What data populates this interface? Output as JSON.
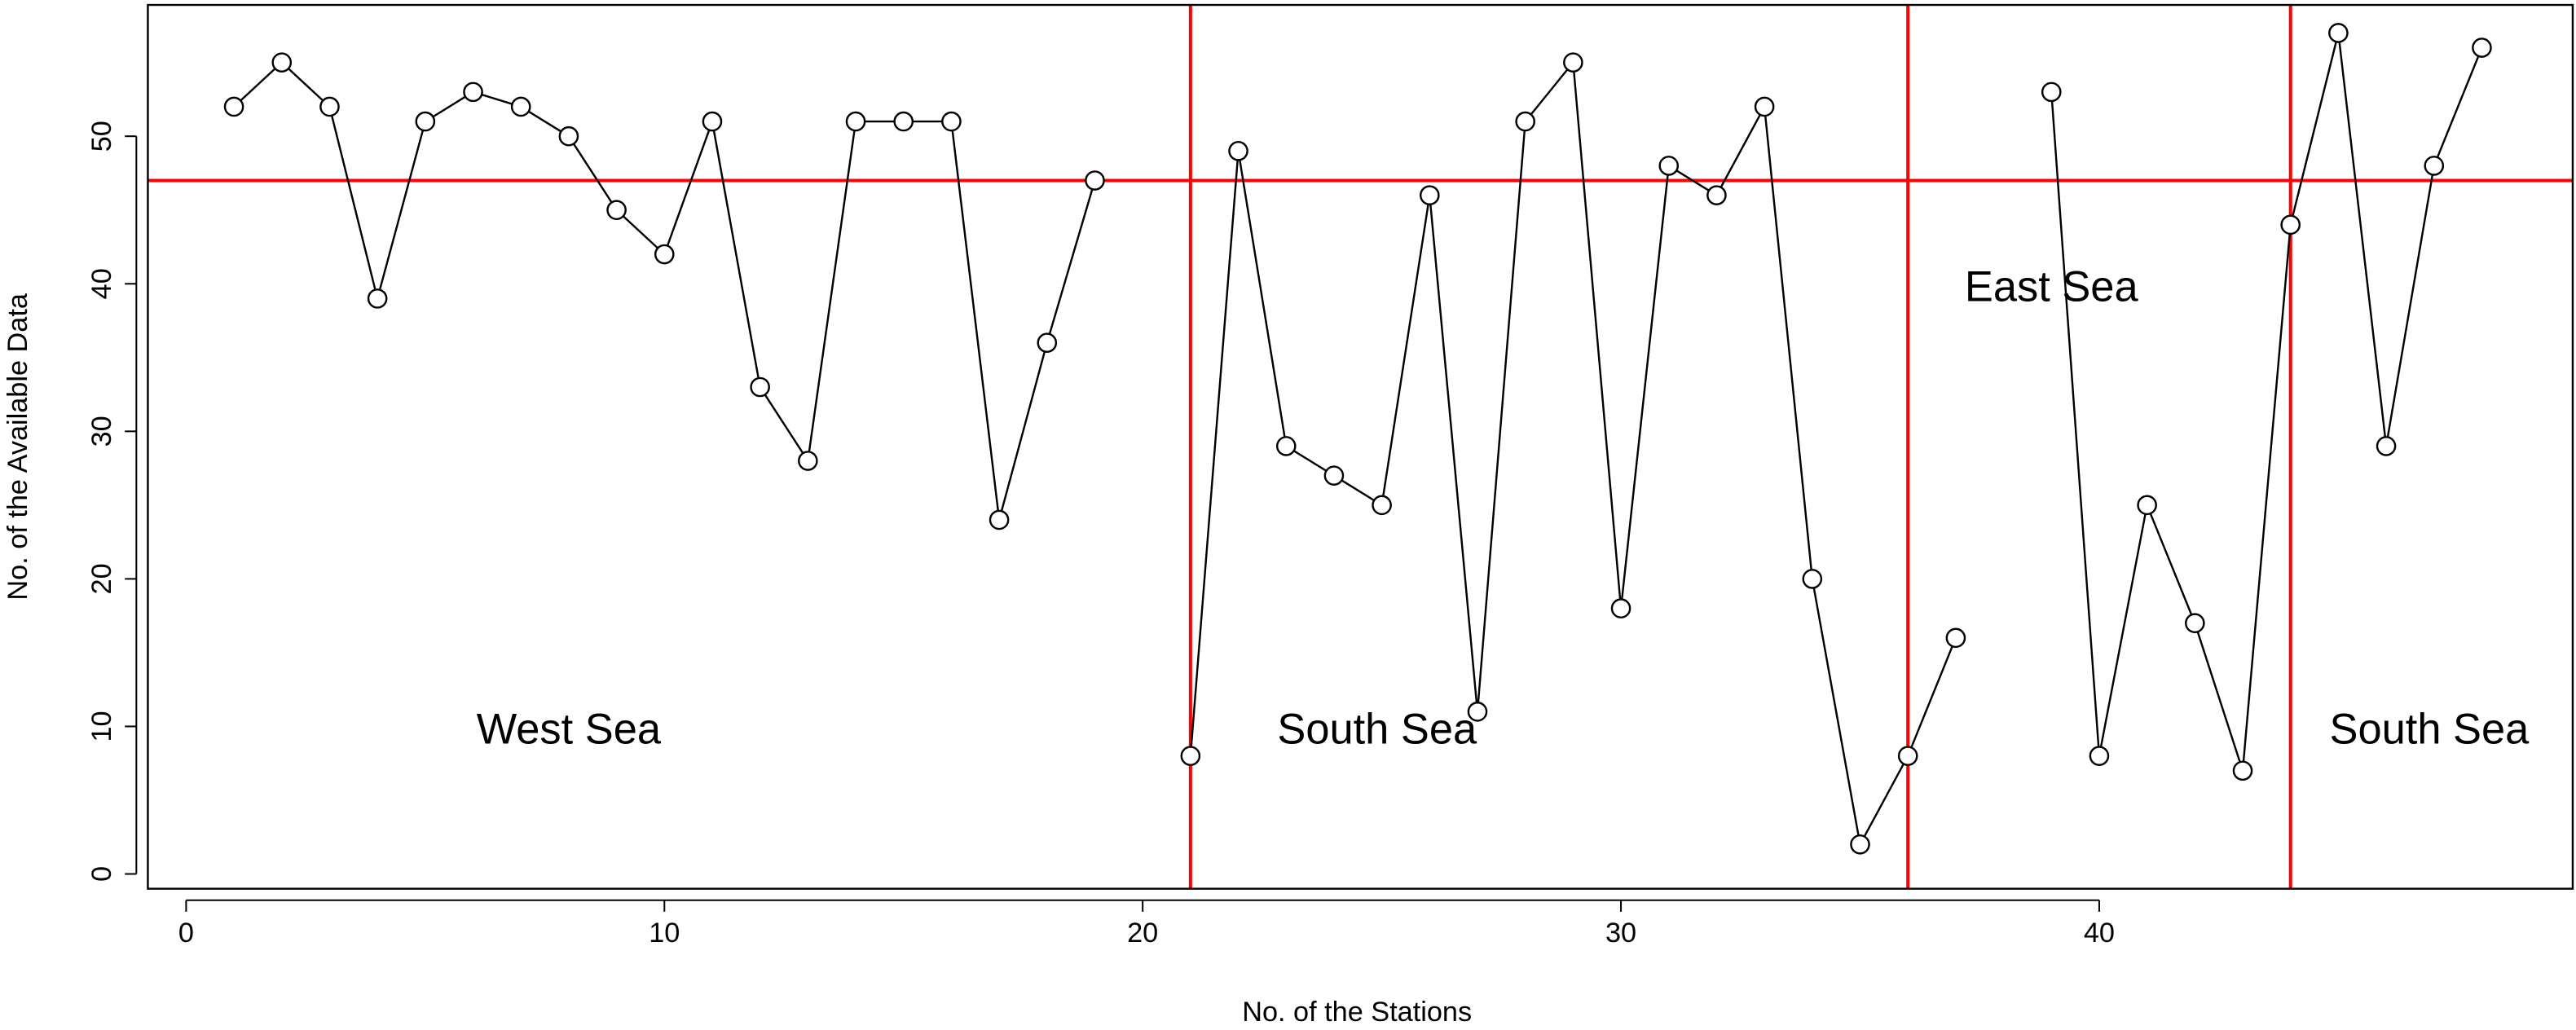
{
  "chart_data": {
    "type": "line",
    "xlabel": "No. of the Stations",
    "ylabel": "No. of the Available Data",
    "x": [
      1,
      2,
      3,
      4,
      5,
      6,
      7,
      8,
      9,
      10,
      11,
      12,
      13,
      14,
      15,
      16,
      17,
      18,
      19,
      20,
      21,
      22,
      23,
      24,
      25,
      26,
      27,
      28,
      29,
      30,
      31,
      32,
      33,
      34,
      35,
      36,
      37,
      38,
      39,
      40,
      41,
      42,
      43,
      44,
      45,
      46,
      47,
      48
    ],
    "series": [
      {
        "color": "#000000",
        "values": [
          52,
          55,
          52,
          39,
          51,
          53,
          52,
          50,
          45,
          42,
          51,
          33,
          28,
          51,
          51,
          51,
          24,
          36,
          47,
          null,
          8,
          49,
          29,
          27,
          25,
          46,
          11,
          51,
          55,
          18,
          48,
          46,
          52,
          20,
          2,
          8,
          16,
          null,
          53,
          8,
          25,
          17,
          7,
          44,
          57,
          29,
          48,
          56
        ]
      }
    ],
    "xlim": [
      -0.8,
      49.9
    ],
    "ylim": [
      -1,
      58.9
    ],
    "xticks": [
      0,
      10,
      20,
      30,
      40
    ],
    "yticks": [
      0,
      10,
      20,
      30,
      40,
      50
    ],
    "reference_color": "#ff0000",
    "hlines": [
      47
    ],
    "vlines": [
      21,
      36,
      44
    ],
    "annotations": [
      {
        "text": "West Sea",
        "x": 8,
        "y": 9.6
      },
      {
        "text": "South Sea",
        "x": 24.9,
        "y": 9.6
      },
      {
        "text": "East Sea",
        "x": 39,
        "y": 39.6
      },
      {
        "text": "South Sea",
        "x": 46.9,
        "y": 9.6
      }
    ]
  }
}
